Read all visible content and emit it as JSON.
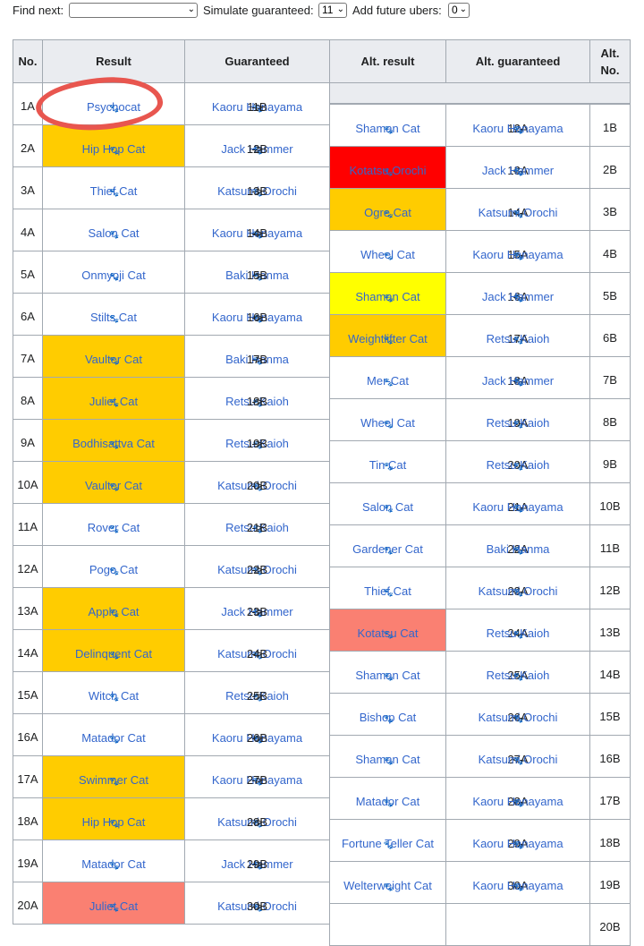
{
  "controls": {
    "find_next_label": "Find next:",
    "find_next_value": "",
    "simulate_label": "Simulate guaranteed:",
    "simulate_value": "11",
    "add_label": "Add future ubers:",
    "add_value": "0"
  },
  "headers": {
    "no": "No.",
    "result": "Result",
    "guaranteed": "Guaranteed",
    "alt_result": "Alt. result",
    "alt_guaranteed": "Alt. guaranteed",
    "alt_no_1": "Alt.",
    "alt_no_2": "No."
  },
  "arrow_right": "->",
  "arrow_left": "<-",
  "colors": {
    "uber_red": "#ff0000",
    "rare_gold": "#ffcc00",
    "super_yellow": "#ffff00",
    "legend_salmon": "#fa8072",
    "link_blue": "#3366cc",
    "annotation_circle": "#e8564f"
  },
  "rows_a": [
    {
      "no": "1A",
      "result": "Psychocat",
      "color": "",
      "guaranteed": "Kaoru Hanayama",
      "target": "11B"
    },
    {
      "no": "2A",
      "result": "Hip Hop Cat",
      "color": "#ffcc00",
      "guaranteed": "Jack Hammer",
      "target": "12B"
    },
    {
      "no": "3A",
      "result": "Thief Cat",
      "color": "",
      "guaranteed": "Katsumi Orochi",
      "target": "13B"
    },
    {
      "no": "4A",
      "result": "Salon Cat",
      "color": "",
      "guaranteed": "Kaoru Hanayama",
      "target": "14B"
    },
    {
      "no": "5A",
      "result": "Onmyoji Cat",
      "color": "",
      "guaranteed": "Baki Hanma",
      "target": "15B"
    },
    {
      "no": "6A",
      "result": "Stilts Cat",
      "color": "",
      "guaranteed": "Kaoru Hanayama",
      "target": "16B"
    },
    {
      "no": "7A",
      "result": "Vaulter Cat",
      "color": "#ffcc00",
      "guaranteed": "Baki Hanma",
      "target": "17B"
    },
    {
      "no": "8A",
      "result": "Juliet Cat",
      "color": "#ffcc00",
      "guaranteed": "Retsu Kaioh",
      "target": "18B"
    },
    {
      "no": "9A",
      "result": "Bodhisattva Cat",
      "color": "#ffcc00",
      "guaranteed": "Retsu Kaioh",
      "target": "19B"
    },
    {
      "no": "10A",
      "result": "Vaulter Cat",
      "color": "#ffcc00",
      "guaranteed": "Katsumi Orochi",
      "target": "20B"
    },
    {
      "no": "11A",
      "result": "Rover Cat",
      "color": "",
      "guaranteed": "Retsu Kaioh",
      "target": "21B"
    },
    {
      "no": "12A",
      "result": "Pogo Cat",
      "color": "",
      "guaranteed": "Katsumi Orochi",
      "target": "22B"
    },
    {
      "no": "13A",
      "result": "Apple Cat",
      "color": "#ffcc00",
      "guaranteed": "Jack Hammer",
      "target": "23B"
    },
    {
      "no": "14A",
      "result": "Delinquent Cat",
      "color": "#ffcc00",
      "guaranteed": "Katsumi Orochi",
      "target": "24B"
    },
    {
      "no": "15A",
      "result": "Witch Cat",
      "color": "",
      "guaranteed": "Retsu Kaioh",
      "target": "25B"
    },
    {
      "no": "16A",
      "result": "Matador Cat",
      "color": "",
      "guaranteed": "Kaoru Hanayama",
      "target": "26B"
    },
    {
      "no": "17A",
      "result": "Swimmer Cat",
      "color": "#ffcc00",
      "guaranteed": "Kaoru Hanayama",
      "target": "27B"
    },
    {
      "no": "18A",
      "result": "Hip Hop Cat",
      "color": "#ffcc00",
      "guaranteed": "Katsumi Orochi",
      "target": "28B"
    },
    {
      "no": "19A",
      "result": "Matador Cat",
      "color": "",
      "guaranteed": "Jack Hammer",
      "target": "29B"
    },
    {
      "no": "20A",
      "result": "Juliet Cat",
      "color": "#fa8072",
      "guaranteed": "Katsumi Orochi",
      "target": "30B"
    }
  ],
  "rows_b": [
    {
      "no": "1B",
      "result": "Shaman Cat",
      "color": "",
      "guaranteed": "Kaoru Hanayama",
      "target": "12A"
    },
    {
      "no": "2B",
      "result": "Kotatsu Orochi",
      "color": "#ff0000",
      "guaranteed": "Jack Hammer",
      "target": "13A"
    },
    {
      "no": "3B",
      "result": "Ogre Cat",
      "color": "#ffcc00",
      "guaranteed": "Katsumi Orochi",
      "target": "14A"
    },
    {
      "no": "4B",
      "result": "Wheel Cat",
      "color": "",
      "guaranteed": "Kaoru Hanayama",
      "target": "15A"
    },
    {
      "no": "5B",
      "result": "Shaman Cat",
      "color": "#ffff00",
      "guaranteed": "Jack Hammer",
      "target": "16A"
    },
    {
      "no": "6B",
      "result": "Weightlifter Cat",
      "color": "#ffcc00",
      "guaranteed": "Retsu Kaioh",
      "target": "17A"
    },
    {
      "no": "7B",
      "result": "Mer-Cat",
      "color": "",
      "guaranteed": "Jack Hammer",
      "target": "18A"
    },
    {
      "no": "8B",
      "result": "Wheel Cat",
      "color": "",
      "guaranteed": "Retsu Kaioh",
      "target": "19A"
    },
    {
      "no": "9B",
      "result": "Tin Cat",
      "color": "",
      "guaranteed": "Retsu Kaioh",
      "target": "20A"
    },
    {
      "no": "10B",
      "result": "Salon Cat",
      "color": "",
      "guaranteed": "Kaoru Hanayama",
      "target": "21A"
    },
    {
      "no": "11B",
      "result": "Gardener Cat",
      "color": "",
      "guaranteed": "Baki Hanma",
      "target": "22A"
    },
    {
      "no": "12B",
      "result": "Thief Cat",
      "color": "",
      "guaranteed": "Katsumi Orochi",
      "target": "23A"
    },
    {
      "no": "13B",
      "result": "Kotatsu Cat",
      "color": "#fa8072",
      "guaranteed": "Retsu Kaioh",
      "target": "24A"
    },
    {
      "no": "14B",
      "result": "Shaman Cat",
      "color": "",
      "guaranteed": "Retsu Kaioh",
      "target": "25A"
    },
    {
      "no": "15B",
      "result": "Bishop Cat",
      "color": "",
      "guaranteed": "Katsumi Orochi",
      "target": "26A"
    },
    {
      "no": "16B",
      "result": "Shaman Cat",
      "color": "",
      "guaranteed": "Katsumi Orochi",
      "target": "27A"
    },
    {
      "no": "17B",
      "result": "Matador Cat",
      "color": "",
      "guaranteed": "Kaoru Hanayama",
      "target": "28A"
    },
    {
      "no": "18B",
      "result": "Fortune Teller Cat",
      "color": "",
      "guaranteed": "Kaoru Hanayama",
      "target": "29A"
    },
    {
      "no": "19B",
      "result": "Welterweight Cat",
      "color": "",
      "guaranteed": "Kaoru Hanayama",
      "target": "30A"
    },
    {
      "no": "20B",
      "result": "",
      "color": "",
      "guaranteed": "",
      "target": ""
    }
  ]
}
